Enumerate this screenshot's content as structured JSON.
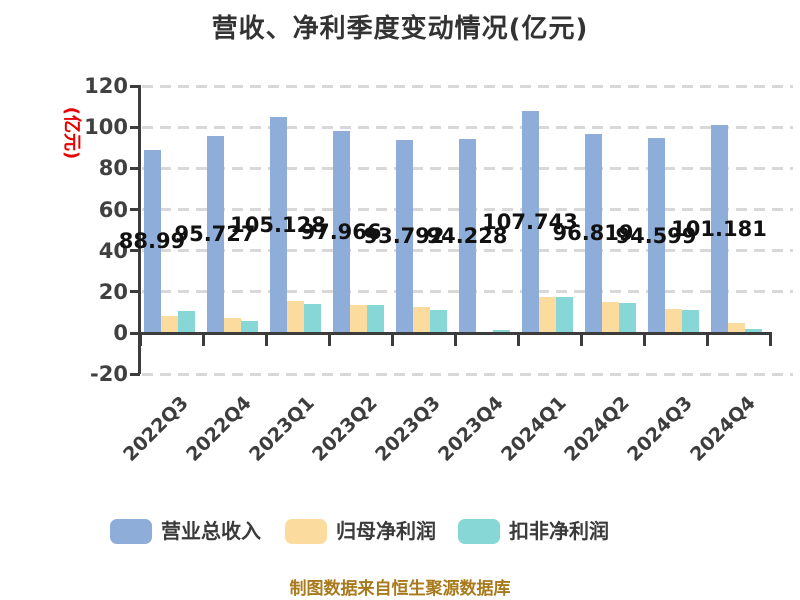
{
  "chart_data": {
    "type": "bar",
    "title": "营收、净利季度变动情况(亿元)",
    "unit_label": "(亿元)",
    "categories": [
      "2022Q3",
      "2022Q4",
      "2023Q1",
      "2023Q2",
      "2023Q3",
      "2023Q4",
      "2024Q1",
      "2024Q2",
      "2024Q3",
      "2024Q4"
    ],
    "series": [
      {
        "key": "total-revenue",
        "name": "营业总收入",
        "color": "#8EADD9",
        "values": [
          88.99,
          95.727,
          105.128,
          97.966,
          93.792,
          94.228,
          107.743,
          96.819,
          94.599,
          101.181
        ],
        "data_labels": [
          "88.99",
          "95.727",
          "105.128",
          "97.966",
          "93.792",
          "94.228",
          "107.743",
          "96.819",
          "94.599",
          "101.181"
        ]
      },
      {
        "key": "net-profit",
        "name": "归母净利润",
        "color": "#FCDC9E",
        "values": [
          8.4,
          7.4,
          15.6,
          13.5,
          12.6,
          0.7,
          17.5,
          15.2,
          11.5,
          4.8
        ],
        "data_labels": null
      },
      {
        "key": "non-gaap-net-profit",
        "name": "扣非净利润",
        "color": "#86D7D5",
        "values": [
          10.8,
          5.9,
          14.1,
          13.4,
          11.1,
          1.3,
          17.3,
          14.7,
          11.4,
          2.1
        ],
        "data_labels": null
      }
    ],
    "ylim": [
      -20,
      120
    ],
    "yticks": [
      120,
      100,
      80,
      60,
      40,
      20,
      0,
      -20
    ],
    "grid": "horizontal-dashed",
    "legend_position": "bottom",
    "footer": "制图数据来自恒生聚源数据库",
    "colors": {
      "axis": "#3C3C3C",
      "grid": "#D8D8D8",
      "title": "#333333",
      "tick_label": "#404040",
      "data_label": "#111111",
      "unit_label": "#E60000",
      "footer": "#A87A1C"
    }
  },
  "legend": {
    "items": [
      {
        "label": "营业总收入",
        "color": "#8EADD9"
      },
      {
        "label": "归母净利润",
        "color": "#FCDC9E"
      },
      {
        "label": "扣非净利润",
        "color": "#86D7D5"
      }
    ]
  }
}
